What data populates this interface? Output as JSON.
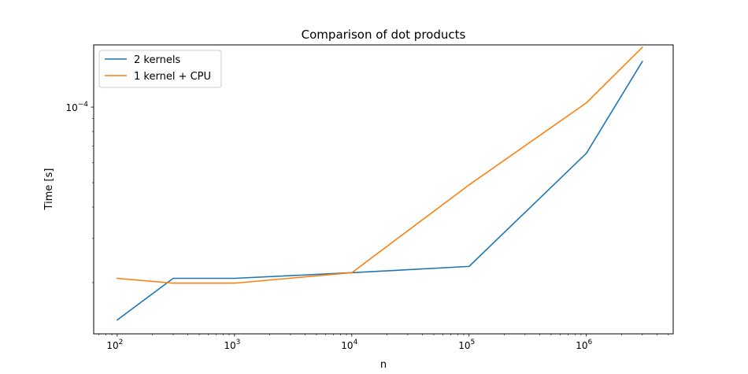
{
  "chart_data": {
    "type": "line",
    "title": "Comparison of dot products",
    "xlabel": "n",
    "ylabel": "Time [s]",
    "xscale": "log",
    "yscale": "log",
    "xlim": [
      63,
      5500000
    ],
    "ylim": [
      1.25e-05,
      0.000177
    ],
    "grid": false,
    "legend_position": "top-left",
    "x_tick_labels": [
      {
        "value": 100,
        "base": "10",
        "exp": "2"
      },
      {
        "value": 1000,
        "base": "10",
        "exp": "3"
      },
      {
        "value": 10000,
        "base": "10",
        "exp": "4"
      },
      {
        "value": 100000,
        "base": "10",
        "exp": "5"
      },
      {
        "value": 1000000,
        "base": "10",
        "exp": "6"
      }
    ],
    "y_tick_labels": [
      {
        "value": 0.0001,
        "base": "10",
        "exp": "−4"
      }
    ],
    "series": [
      {
        "name": "2 kernels",
        "color": "#1f77b4",
        "x": [
          100,
          300,
          1000,
          10000,
          100000,
          1000000,
          3000000
        ],
        "y": [
          1.42e-05,
          2.08e-05,
          2.08e-05,
          2.19e-05,
          2.32e-05,
          6.55e-05,
          0.000152
        ]
      },
      {
        "name": "1 kernel + CPU",
        "color": "#ff7f0e",
        "x": [
          100,
          300,
          1000,
          10000,
          100000,
          1000000,
          3000000
        ],
        "y": [
          2.08e-05,
          1.99e-05,
          1.99e-05,
          2.19e-05,
          4.9e-05,
          0.000104,
          0.000173
        ]
      }
    ]
  }
}
